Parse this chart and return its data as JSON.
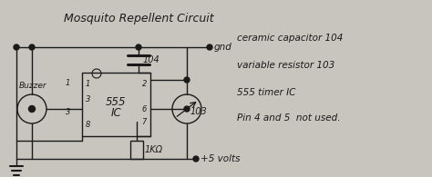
{
  "bg_color": "#c8c5be",
  "title": "Mosquito Repellent Circuit",
  "notes": [
    "ceramic capacitor 104",
    "variable resistor 103",
    "555 timer IC",
    "Pin 4 and 5  not used."
  ],
  "gnd_label": "gnd",
  "plus5_label": "+5 volts",
  "ic_label": "555\nIC",
  "buzzer_label": "Buzzer",
  "cap_label": "104",
  "res_label": "1KΩ",
  "var_res_label": "103"
}
